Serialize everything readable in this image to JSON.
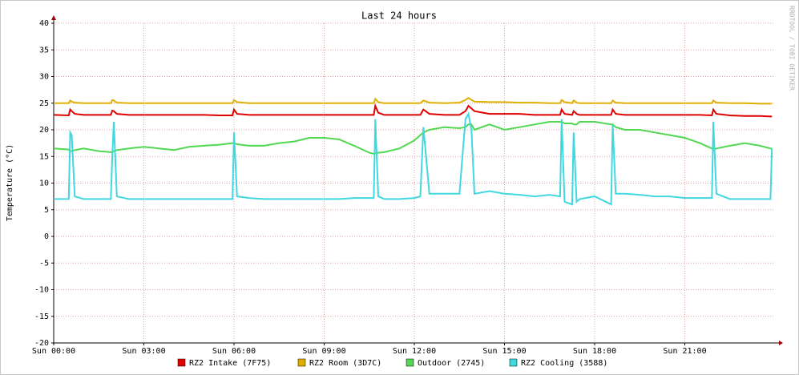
{
  "chart_data": {
    "type": "line",
    "title": "Last 24 hours",
    "y_label": "Temperature (°C)",
    "watermark": "RRDTOOL / TOBI OETIKER",
    "x": [
      0,
      0.5,
      0.55,
      0.6,
      0.7,
      1,
      1.5,
      1.9,
      1.95,
      2.0,
      2.1,
      2.5,
      3,
      3.5,
      4,
      4.5,
      5,
      5.5,
      5.95,
      6.0,
      6.1,
      6.5,
      7,
      7.5,
      8,
      8.5,
      9,
      9.5,
      10,
      10.5,
      10.65,
      10.7,
      10.8,
      11,
      11.5,
      12,
      12.2,
      12.3,
      12.5,
      13,
      13.5,
      13.7,
      13.8,
      13.9,
      14,
      14.5,
      15,
      15.5,
      16,
      16.5,
      16.85,
      16.9,
      17.0,
      17.25,
      17.3,
      17.4,
      17.5,
      18,
      18.55,
      18.6,
      18.7,
      19,
      19.5,
      20,
      20.5,
      21,
      21.5,
      21.9,
      21.95,
      22.05,
      22.5,
      23,
      23.5,
      23.85,
      23.9
    ],
    "xlim": [
      0,
      24
    ],
    "xticks": [
      {
        "value": 0,
        "label": "Sun 00:00"
      },
      {
        "value": 3,
        "label": "Sun 03:00"
      },
      {
        "value": 6,
        "label": "Sun 06:00"
      },
      {
        "value": 9,
        "label": "Sun 09:00"
      },
      {
        "value": 12,
        "label": "Sun 12:00"
      },
      {
        "value": 15,
        "label": "Sun 15:00"
      },
      {
        "value": 18,
        "label": "Sun 18:00"
      },
      {
        "value": 21,
        "label": "Sun 21:00"
      }
    ],
    "ylim": [
      -20,
      40
    ],
    "yticks": [
      -20,
      -15,
      -10,
      -5,
      0,
      5,
      10,
      15,
      20,
      25,
      30,
      35,
      40
    ],
    "grid": true,
    "legend": "bottom",
    "series": [
      {
        "name": "RZ2 Intake (7F75)",
        "color": "#e00000",
        "values": [
          22.8,
          22.7,
          23.8,
          23.5,
          23.0,
          22.8,
          22.8,
          22.8,
          23.6,
          23.5,
          23.0,
          22.8,
          22.8,
          22.8,
          22.8,
          22.8,
          22.8,
          22.7,
          22.7,
          23.8,
          23.0,
          22.8,
          22.8,
          22.8,
          22.8,
          22.8,
          22.8,
          22.8,
          22.8,
          22.8,
          22.8,
          24.5,
          23.2,
          22.8,
          22.8,
          22.8,
          22.8,
          23.8,
          23.0,
          22.8,
          22.8,
          23.5,
          24.5,
          24,
          23.5,
          23,
          23,
          23,
          22.8,
          22.8,
          22.8,
          23.8,
          23,
          22.8,
          23.5,
          23,
          22.8,
          22.8,
          22.8,
          23.8,
          23,
          22.8,
          22.8,
          22.8,
          22.8,
          22.8,
          22.8,
          22.7,
          23.8,
          23,
          22.7,
          22.6,
          22.6,
          22.5,
          22.5
        ]
      },
      {
        "name": "RZ2 Room (3D7C)",
        "color": "#e0b000",
        "values": [
          25,
          25,
          25.5,
          25.3,
          25.1,
          25,
          25,
          25,
          25.6,
          25.5,
          25.1,
          25,
          25,
          25,
          25,
          25,
          25,
          25,
          25,
          25.6,
          25.2,
          25,
          25,
          25,
          25,
          25,
          25,
          25,
          25,
          25,
          25,
          25.8,
          25.2,
          25,
          25,
          25,
          25,
          25.5,
          25.1,
          25,
          25.1,
          25.6,
          26,
          25.6,
          25.3,
          25.2,
          25.2,
          25.1,
          25.1,
          25,
          25,
          25.6,
          25.2,
          25,
          25.5,
          25.1,
          25,
          25,
          25,
          25.5,
          25.1,
          25,
          25,
          25,
          25,
          25,
          25,
          25,
          25.5,
          25.1,
          25,
          25,
          24.9,
          24.9,
          24.9
        ]
      },
      {
        "name": "Outdoor (2745)",
        "color": "#50d850",
        "values": [
          16.5,
          16.3,
          16.0,
          16.0,
          16.2,
          16.5,
          16.0,
          15.8,
          15.8,
          16,
          16.2,
          16.5,
          16.8,
          16.5,
          16.2,
          16.8,
          17.0,
          17.2,
          17.5,
          17.5,
          17.3,
          17.0,
          17.0,
          17.5,
          17.8,
          18.5,
          18.5,
          18.2,
          17,
          15.7,
          15.5,
          15.6,
          15.7,
          15.8,
          16.5,
          18,
          19,
          19.5,
          20,
          20.5,
          20.3,
          20.5,
          21,
          21,
          20,
          21,
          20,
          20.5,
          21,
          21.5,
          21.5,
          21.5,
          21.2,
          21.2,
          21,
          21,
          21.5,
          21.5,
          21,
          21,
          20.5,
          20,
          20,
          19.5,
          19,
          18.5,
          17.5,
          16.5,
          16.3,
          16.5,
          17,
          17.5,
          17,
          16.5,
          16.5
        ]
      },
      {
        "name": "RZ2 Cooling (3588)",
        "color": "#40d8e0",
        "values": [
          7,
          7,
          19.5,
          19,
          7.5,
          7,
          7,
          7,
          15,
          21.5,
          7.5,
          7,
          7,
          7,
          7,
          7,
          7,
          7,
          7,
          19.5,
          7.5,
          7.2,
          7,
          7,
          7,
          7,
          7,
          7,
          7.2,
          7.2,
          7.2,
          22,
          7.5,
          7,
          7,
          7.2,
          7.5,
          20.5,
          8,
          8,
          8,
          22,
          23,
          20,
          8,
          8.5,
          8,
          7.8,
          7.5,
          7.8,
          7.5,
          22,
          6.5,
          6,
          19.5,
          6.5,
          7,
          7.5,
          6,
          21,
          8,
          8,
          7.8,
          7.5,
          7.5,
          7.2,
          7.2,
          7.2,
          21.5,
          8,
          7,
          7,
          7,
          7,
          16.5
        ]
      }
    ]
  }
}
